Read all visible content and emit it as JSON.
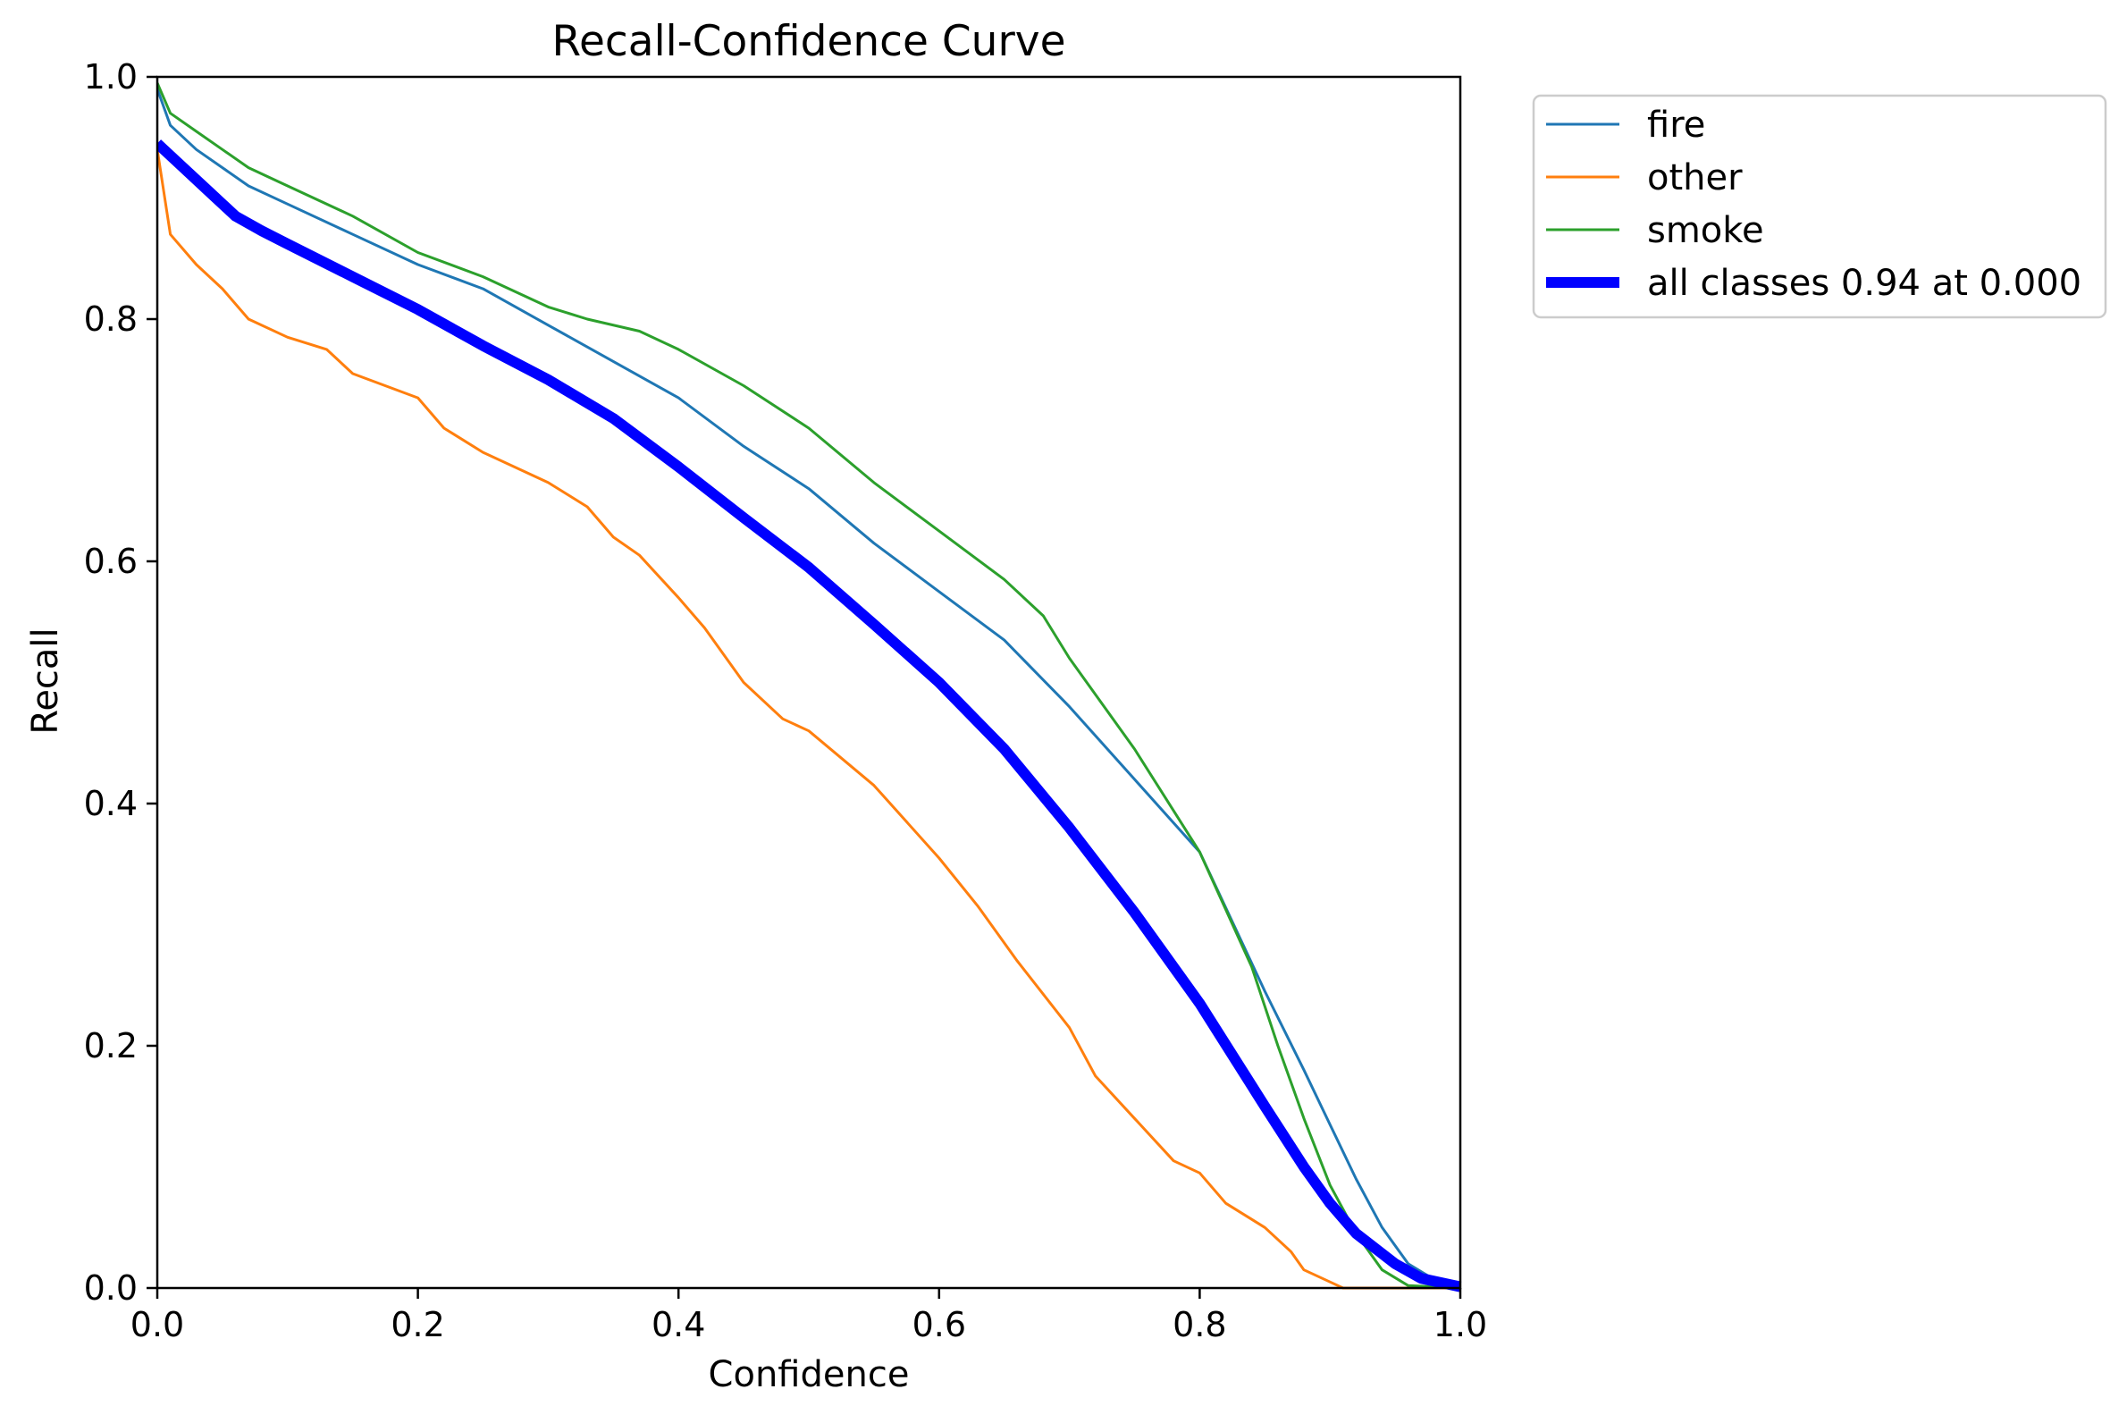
{
  "chart_data": {
    "type": "line",
    "title": "Recall-Confidence Curve",
    "xlabel": "Confidence",
    "ylabel": "Recall",
    "xlim": [
      0,
      1
    ],
    "ylim": [
      0,
      1
    ],
    "x_ticks": [
      0.0,
      0.2,
      0.4,
      0.6,
      0.8,
      1.0
    ],
    "y_ticks": [
      0.0,
      0.2,
      0.4,
      0.6,
      0.8,
      1.0
    ],
    "x_tick_labels": [
      "0.0",
      "0.2",
      "0.4",
      "0.6",
      "0.8",
      "1.0"
    ],
    "y_tick_labels": [
      "0.0",
      "0.2",
      "0.4",
      "0.6",
      "0.8",
      "1.0"
    ],
    "grid": false,
    "legend_position": "outside-top-right",
    "series": [
      {
        "name": "fire",
        "color": "#1f77b4",
        "linewidth": "thin",
        "points": [
          [
            0.0,
            0.99
          ],
          [
            0.01,
            0.96
          ],
          [
            0.03,
            0.94
          ],
          [
            0.05,
            0.925
          ],
          [
            0.07,
            0.91
          ],
          [
            0.1,
            0.895
          ],
          [
            0.15,
            0.87
          ],
          [
            0.2,
            0.845
          ],
          [
            0.25,
            0.825
          ],
          [
            0.3,
            0.795
          ],
          [
            0.35,
            0.765
          ],
          [
            0.4,
            0.735
          ],
          [
            0.45,
            0.695
          ],
          [
            0.5,
            0.66
          ],
          [
            0.55,
            0.615
          ],
          [
            0.6,
            0.575
          ],
          [
            0.65,
            0.535
          ],
          [
            0.7,
            0.48
          ],
          [
            0.75,
            0.42
          ],
          [
            0.8,
            0.36
          ],
          [
            0.85,
            0.245
          ],
          [
            0.88,
            0.18
          ],
          [
            0.9,
            0.135
          ],
          [
            0.92,
            0.09
          ],
          [
            0.94,
            0.05
          ],
          [
            0.96,
            0.02
          ],
          [
            0.98,
            0.007
          ],
          [
            1.0,
            0.002
          ]
        ]
      },
      {
        "name": "other",
        "color": "#ff7f0e",
        "linewidth": "thin",
        "points": [
          [
            0.0,
            0.94
          ],
          [
            0.01,
            0.87
          ],
          [
            0.03,
            0.845
          ],
          [
            0.05,
            0.825
          ],
          [
            0.07,
            0.8
          ],
          [
            0.1,
            0.785
          ],
          [
            0.13,
            0.775
          ],
          [
            0.15,
            0.755
          ],
          [
            0.2,
            0.735
          ],
          [
            0.22,
            0.71
          ],
          [
            0.25,
            0.69
          ],
          [
            0.3,
            0.665
          ],
          [
            0.33,
            0.645
          ],
          [
            0.35,
            0.62
          ],
          [
            0.37,
            0.605
          ],
          [
            0.4,
            0.57
          ],
          [
            0.42,
            0.545
          ],
          [
            0.45,
            0.5
          ],
          [
            0.48,
            0.47
          ],
          [
            0.5,
            0.46
          ],
          [
            0.55,
            0.415
          ],
          [
            0.6,
            0.355
          ],
          [
            0.63,
            0.315
          ],
          [
            0.66,
            0.27
          ],
          [
            0.7,
            0.215
          ],
          [
            0.72,
            0.175
          ],
          [
            0.75,
            0.14
          ],
          [
            0.78,
            0.105
          ],
          [
            0.8,
            0.095
          ],
          [
            0.82,
            0.07
          ],
          [
            0.85,
            0.05
          ],
          [
            0.87,
            0.03
          ],
          [
            0.88,
            0.015
          ],
          [
            0.9,
            0.005
          ],
          [
            0.91,
            0.0
          ],
          [
            1.0,
            0.0
          ]
        ]
      },
      {
        "name": "smoke",
        "color": "#2ca02c",
        "linewidth": "thin",
        "points": [
          [
            0.0,
            0.995
          ],
          [
            0.01,
            0.97
          ],
          [
            0.03,
            0.955
          ],
          [
            0.05,
            0.94
          ],
          [
            0.07,
            0.925
          ],
          [
            0.1,
            0.91
          ],
          [
            0.15,
            0.885
          ],
          [
            0.2,
            0.855
          ],
          [
            0.25,
            0.835
          ],
          [
            0.3,
            0.81
          ],
          [
            0.33,
            0.8
          ],
          [
            0.37,
            0.79
          ],
          [
            0.4,
            0.775
          ],
          [
            0.45,
            0.745
          ],
          [
            0.5,
            0.71
          ],
          [
            0.55,
            0.665
          ],
          [
            0.6,
            0.625
          ],
          [
            0.65,
            0.585
          ],
          [
            0.68,
            0.555
          ],
          [
            0.7,
            0.52
          ],
          [
            0.75,
            0.445
          ],
          [
            0.8,
            0.36
          ],
          [
            0.84,
            0.265
          ],
          [
            0.86,
            0.2
          ],
          [
            0.88,
            0.14
          ],
          [
            0.9,
            0.085
          ],
          [
            0.92,
            0.045
          ],
          [
            0.94,
            0.015
          ],
          [
            0.96,
            0.002
          ],
          [
            1.0,
            0.0
          ]
        ]
      },
      {
        "name": "all classes 0.94 at 0.000",
        "color": "#0000ff",
        "linewidth": "thick",
        "points": [
          [
            0.0,
            0.945
          ],
          [
            0.02,
            0.925
          ],
          [
            0.04,
            0.905
          ],
          [
            0.06,
            0.885
          ],
          [
            0.08,
            0.873
          ],
          [
            0.1,
            0.862
          ],
          [
            0.15,
            0.835
          ],
          [
            0.2,
            0.808
          ],
          [
            0.25,
            0.778
          ],
          [
            0.3,
            0.75
          ],
          [
            0.35,
            0.718
          ],
          [
            0.4,
            0.678
          ],
          [
            0.45,
            0.636
          ],
          [
            0.5,
            0.595
          ],
          [
            0.55,
            0.548
          ],
          [
            0.6,
            0.5
          ],
          [
            0.65,
            0.445
          ],
          [
            0.7,
            0.38
          ],
          [
            0.75,
            0.31
          ],
          [
            0.8,
            0.235
          ],
          [
            0.85,
            0.15
          ],
          [
            0.88,
            0.1
          ],
          [
            0.9,
            0.07
          ],
          [
            0.92,
            0.045
          ],
          [
            0.95,
            0.02
          ],
          [
            0.97,
            0.008
          ],
          [
            1.0,
            0.001
          ]
        ]
      }
    ]
  }
}
